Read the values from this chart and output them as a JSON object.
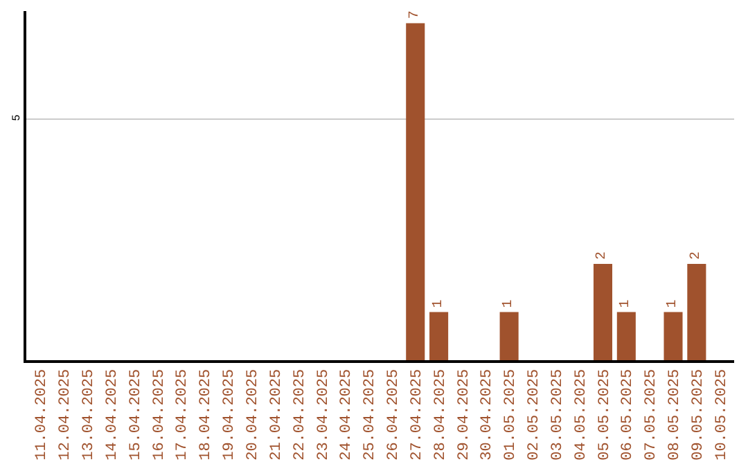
{
  "chart_data": {
    "type": "bar",
    "categories": [
      "11.04.2025",
      "12.04.2025",
      "13.04.2025",
      "14.04.2025",
      "15.04.2025",
      "16.04.2025",
      "17.04.2025",
      "18.04.2025",
      "19.04.2025",
      "20.04.2025",
      "21.04.2025",
      "22.04.2025",
      "23.04.2025",
      "24.04.2025",
      "25.04.2025",
      "26.04.2025",
      "27.04.2025",
      "28.04.2025",
      "29.04.2025",
      "30.04.2025",
      "01.05.2025",
      "02.05.2025",
      "03.05.2025",
      "04.05.2025",
      "05.05.2025",
      "06.05.2025",
      "07.05.2025",
      "08.05.2025",
      "09.05.2025",
      "10.05.2025"
    ],
    "values": [
      null,
      null,
      null,
      null,
      null,
      null,
      null,
      null,
      null,
      null,
      null,
      null,
      null,
      null,
      null,
      null,
      7,
      1,
      null,
      null,
      1,
      null,
      null,
      null,
      2,
      1,
      null,
      1,
      2,
      null
    ],
    "data_labels": true,
    "color": "#a0522d",
    "ylim": [
      0,
      7.25
    ],
    "yticks": [
      5
    ],
    "grid": "y"
  }
}
